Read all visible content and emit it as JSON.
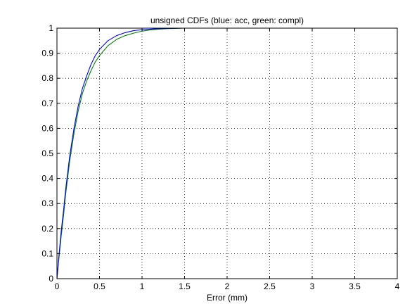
{
  "chart_data": {
    "type": "line",
    "title": "unsigned CDFs (blue: acc, green: compl)",
    "xlabel": "Error (mm)",
    "ylabel": "",
    "xlim": [
      0,
      4
    ],
    "ylim": [
      0,
      1
    ],
    "xticks": [
      0,
      0.5,
      1,
      1.5,
      2,
      2.5,
      3,
      3.5,
      4
    ],
    "xtick_labels": [
      "0",
      "0.5",
      "1",
      "1.5",
      "2",
      "2.5",
      "3",
      "3.5",
      "4"
    ],
    "yticks": [
      0,
      0.1,
      0.2,
      0.3,
      0.4,
      0.5,
      0.6,
      0.7,
      0.8,
      0.9,
      1
    ],
    "ytick_labels": [
      "0",
      "0.1",
      "0.2",
      "0.3",
      "0.4",
      "0.5",
      "0.6",
      "0.7",
      "0.8",
      "0.9",
      "1"
    ],
    "grid": true,
    "legend": "none",
    "series": [
      {
        "color": "#0000ff",
        "x": [
          0,
          0.02,
          0.05,
          0.08,
          0.1,
          0.15,
          0.2,
          0.25,
          0.3,
          0.35,
          0.4,
          0.45,
          0.5,
          0.6,
          0.7,
          0.8,
          0.9,
          1.0,
          1.1,
          1.2,
          1.3,
          1.5,
          2.0,
          3.0
        ],
        "y": [
          0.0,
          0.08,
          0.19,
          0.28,
          0.35,
          0.49,
          0.6,
          0.69,
          0.76,
          0.81,
          0.855,
          0.89,
          0.915,
          0.95,
          0.97,
          0.982,
          0.99,
          0.994,
          0.996,
          0.998,
          0.999,
          1.0,
          1.0,
          1.0
        ]
      },
      {
        "color": "#008000",
        "x": [
          0,
          0.02,
          0.05,
          0.08,
          0.1,
          0.15,
          0.2,
          0.25,
          0.3,
          0.35,
          0.4,
          0.45,
          0.5,
          0.6,
          0.7,
          0.8,
          0.9,
          1.0,
          1.1,
          1.2,
          1.3,
          1.5,
          2.0,
          3.0
        ],
        "y": [
          0.0,
          0.07,
          0.17,
          0.26,
          0.33,
          0.47,
          0.58,
          0.67,
          0.74,
          0.79,
          0.83,
          0.865,
          0.89,
          0.93,
          0.955,
          0.97,
          0.98,
          0.988,
          0.993,
          0.996,
          0.998,
          1.0,
          1.0,
          1.0
        ]
      }
    ]
  }
}
